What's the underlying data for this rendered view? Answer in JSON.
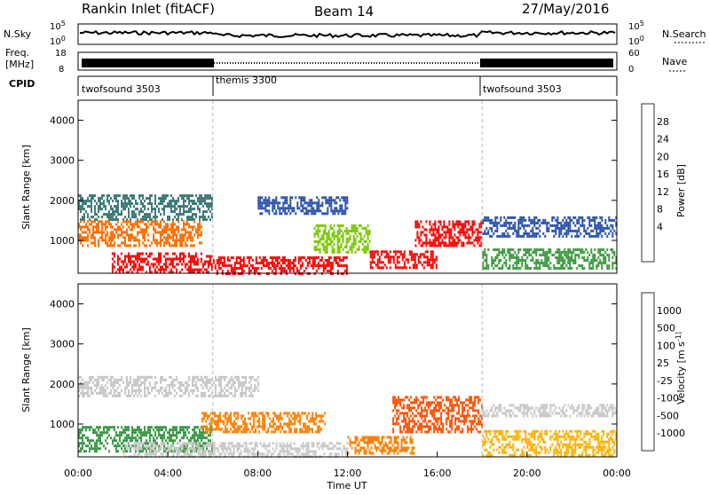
{
  "header": {
    "station": "Rankin Inlet (fitACF)",
    "beam": "Beam 14",
    "date": "27/May/2016"
  },
  "noise_panel": {
    "left_label": "N.Sky",
    "right_label": "N.Search",
    "left_ticks": [
      "10^5",
      "10^0"
    ],
    "right_ticks": [
      "10^5",
      "10^0"
    ]
  },
  "freq_panel": {
    "left_label_1": "Freq.",
    "left_label_2": "[MHz]",
    "right_label": "Nave",
    "left_ticks": [
      "18",
      "8"
    ],
    "right_ticks": [
      "60",
      "0"
    ]
  },
  "cpid": {
    "label": "CPID",
    "segments": [
      {
        "name": "twofsound 3503",
        "start": 0,
        "end": 6
      },
      {
        "name": "themis 3300",
        "start": 6,
        "end": 18
      },
      {
        "name": "twofsound 3503",
        "start": 18,
        "end": 24
      }
    ]
  },
  "chart_data": [
    {
      "type": "heatmap",
      "name": "power",
      "ylabel": "Slant Range [km]",
      "ylim": [
        180,
        4500
      ],
      "yticks": [
        "4000",
        "3000",
        "2000",
        "1000"
      ],
      "xlim": [
        0,
        24
      ],
      "colorbar": {
        "label": "Power [dB]",
        "ticks": [
          "28",
          "24",
          "20",
          "16",
          "12",
          "8",
          "4"
        ],
        "colors": [
          "#ff0000",
          "#ff7000",
          "#ffb000",
          "#e8d800",
          "#7ac800",
          "#3c9a40",
          "#3c7a78",
          "#2850a8",
          "#0018ff"
        ]
      },
      "regions": [
        {
          "x0": 0.0,
          "x1": 6.0,
          "y0": 1500,
          "y1": 2150,
          "level": "#3c7a78"
        },
        {
          "x0": 0.0,
          "x1": 5.5,
          "y0": 900,
          "y1": 1500,
          "level": "#ff7000"
        },
        {
          "x0": 1.5,
          "x1": 6.0,
          "y0": 200,
          "y1": 700,
          "level": "#ff0000"
        },
        {
          "x0": 6.0,
          "x1": 12.0,
          "y0": 200,
          "y1": 600,
          "level": "#ff0000"
        },
        {
          "x0": 8.0,
          "x1": 12.0,
          "y0": 1700,
          "y1": 2100,
          "level": "#2850a8"
        },
        {
          "x0": 10.5,
          "x1": 13.0,
          "y0": 700,
          "y1": 1400,
          "level": "#7ac800"
        },
        {
          "x0": 13.0,
          "x1": 16.0,
          "y0": 350,
          "y1": 750,
          "level": "#ff0000"
        },
        {
          "x0": 15.0,
          "x1": 18.0,
          "y0": 900,
          "y1": 1500,
          "level": "#ff0000"
        },
        {
          "x0": 18.0,
          "x1": 24.0,
          "y0": 300,
          "y1": 800,
          "level": "#3c9a40"
        },
        {
          "x0": 18.0,
          "x1": 24.0,
          "y0": 1100,
          "y1": 1600,
          "level": "#2850a8"
        }
      ],
      "vlines": [
        6,
        18
      ]
    },
    {
      "type": "heatmap",
      "name": "velocity",
      "ylabel": "Slant Range [km]",
      "ylim": [
        180,
        4500
      ],
      "yticks": [
        "4000",
        "3000",
        "2000",
        "1000"
      ],
      "xlim": [
        0,
        24
      ],
      "xticks": [
        "00:00",
        "04:00",
        "08:00",
        "12:00",
        "16:00",
        "20:00",
        "00:00"
      ],
      "xlabel": "Time UT",
      "colorbar": {
        "label": "Velocity [m s^-1]",
        "ticks": [
          "1000",
          "500",
          "100",
          "25",
          "-25",
          "-100",
          "-500",
          "-1000"
        ],
        "colors": [
          "#1030c0",
          "#2868b0",
          "#3c9a48",
          "#60c040",
          "#c8c8c8",
          "#ffb000",
          "#ff8000",
          "#ff5000",
          "#ff0000"
        ]
      },
      "regions": [
        {
          "x0": 0.0,
          "x1": 8.0,
          "y0": 1700,
          "y1": 2200,
          "level": "#c8c8c8"
        },
        {
          "x0": 0.0,
          "x1": 6.0,
          "y0": 350,
          "y1": 950,
          "level": "#3c9a48"
        },
        {
          "x0": 2.0,
          "x1": 12.0,
          "y0": 200,
          "y1": 550,
          "level": "#c8c8c8"
        },
        {
          "x0": 5.5,
          "x1": 11.0,
          "y0": 800,
          "y1": 1300,
          "level": "#ff8000"
        },
        {
          "x0": 12.0,
          "x1": 15.0,
          "y0": 250,
          "y1": 700,
          "level": "#ff8000"
        },
        {
          "x0": 14.0,
          "x1": 18.0,
          "y0": 800,
          "y1": 1700,
          "level": "#ff5000"
        },
        {
          "x0": 18.0,
          "x1": 24.0,
          "y0": 250,
          "y1": 850,
          "level": "#ffb000"
        },
        {
          "x0": 18.0,
          "x1": 24.0,
          "y0": 1200,
          "y1": 1500,
          "level": "#c8c8c8"
        }
      ],
      "vlines": [
        6,
        18
      ]
    }
  ]
}
